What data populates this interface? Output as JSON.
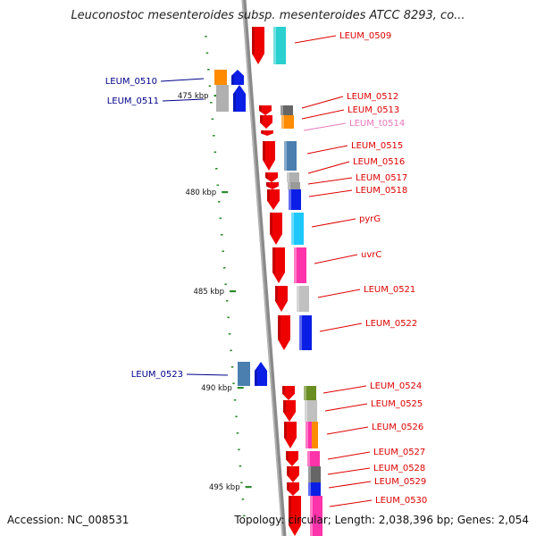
{
  "title": "Leuconostoc mesenteroides subsp. mesenteroides ATCC 8293, co...",
  "footer": {
    "accession": "Accession: NC_008531",
    "summary": "Topology: circular; Length: 2,038,396 bp; Genes: 2,054"
  },
  "colors": {
    "backbone": "#808080",
    "tick": "#2e8b2e",
    "forward_label": "#00008b",
    "reverse_label": "#dd0000",
    "trna_label": "#e878b8"
  },
  "scale_ticks": [
    "475 kbp",
    "480 kbp",
    "485 kbp",
    "490 kbp",
    "495 kbp"
  ],
  "genes": [
    {
      "name": "LEUM_0509",
      "strand": "reverse"
    },
    {
      "name": "LEUM_0510",
      "strand": "forward"
    },
    {
      "name": "LEUM_0511",
      "strand": "forward"
    },
    {
      "name": "LEUM_0512",
      "strand": "reverse"
    },
    {
      "name": "LEUM_0513",
      "strand": "reverse"
    },
    {
      "name": "LEUM_t0514",
      "strand": "reverse",
      "type": "tRNA"
    },
    {
      "name": "LEUM_0515",
      "strand": "reverse"
    },
    {
      "name": "LEUM_0516",
      "strand": "reverse"
    },
    {
      "name": "LEUM_0517",
      "strand": "reverse"
    },
    {
      "name": "LEUM_0518",
      "strand": "reverse"
    },
    {
      "name": "pyrG",
      "strand": "reverse"
    },
    {
      "name": "uvrC",
      "strand": "reverse"
    },
    {
      "name": "LEUM_0521",
      "strand": "reverse"
    },
    {
      "name": "LEUM_0522",
      "strand": "reverse"
    },
    {
      "name": "LEUM_0523",
      "strand": "forward"
    },
    {
      "name": "LEUM_0524",
      "strand": "reverse"
    },
    {
      "name": "LEUM_0525",
      "strand": "reverse"
    },
    {
      "name": "LEUM_0526",
      "strand": "reverse"
    },
    {
      "name": "LEUM_0527",
      "strand": "reverse"
    },
    {
      "name": "LEUM_0528",
      "strand": "reverse"
    },
    {
      "name": "LEUM_0529",
      "strand": "reverse"
    },
    {
      "name": "LEUM_0530",
      "strand": "reverse"
    }
  ]
}
